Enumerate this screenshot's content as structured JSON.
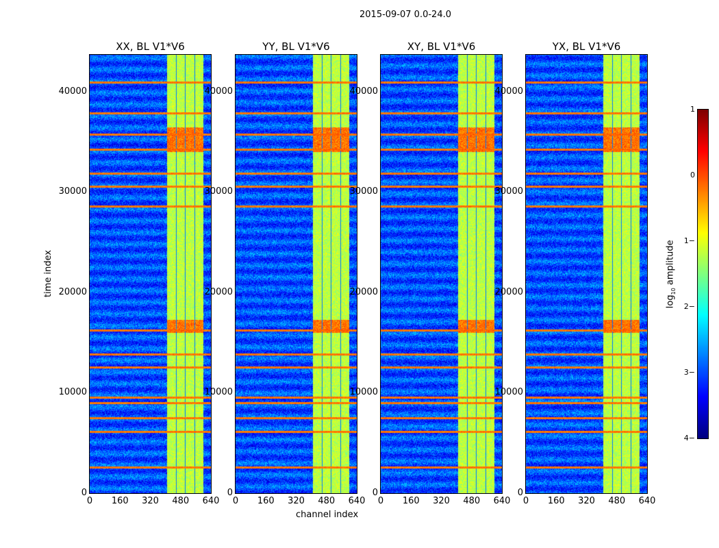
{
  "chart_data": {
    "type": "heatmap",
    "suptitle": "2015-09-07 0.0-24.0",
    "panels": [
      {
        "title": "XX, BL V1*V6"
      },
      {
        "title": "YY, BL V1*V6"
      },
      {
        "title": "XY, BL V1*V6"
      },
      {
        "title": "YX, BL V1*V6"
      }
    ],
    "xlabel": "channel index",
    "ylabel": "time index",
    "xlim": [
      0,
      640
    ],
    "ylim": [
      0,
      43680
    ],
    "xticks": [
      "0",
      "160",
      "320",
      "480",
      "640"
    ],
    "xtick_values": [
      0,
      160,
      320,
      480,
      640
    ],
    "yticks": [
      "0",
      "10000",
      "20000",
      "30000",
      "40000"
    ],
    "ytick_values": [
      0,
      10000,
      20000,
      30000,
      40000
    ],
    "colorbar": {
      "label": "log10 amplitude",
      "label_main": "log",
      "label_sub": "10",
      "label_rest": " amplitude",
      "ticks": [
        "1",
        "0",
        "−1",
        "−2",
        "−3",
        "−4"
      ],
      "tick_values": [
        1,
        0,
        -1,
        -2,
        -3,
        -4
      ],
      "range": [
        -4,
        1
      ],
      "colormap": "jet"
    },
    "background_level": -3.0,
    "band": {
      "channels": [
        405,
        600
      ],
      "level": -1.2,
      "gaps": [
        455,
        503,
        553
      ]
    },
    "rfi_rows": [
      40955,
      37884,
      35768,
      34266,
      31877,
      30580,
      28600,
      16246,
      13857,
      12560,
      9556,
      9010,
      7508,
      6143,
      2594
    ],
    "hot_blocks": [
      [
        16000,
        17300
      ],
      [
        34000,
        36500
      ]
    ]
  }
}
